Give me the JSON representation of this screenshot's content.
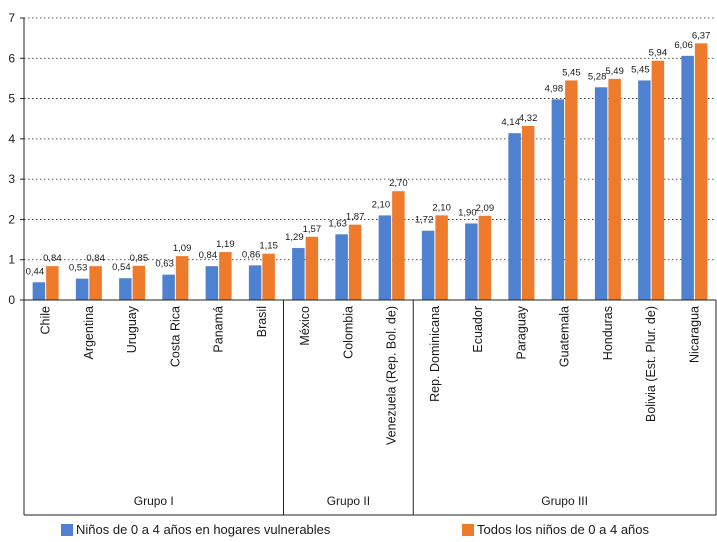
{
  "chart_data": {
    "type": "bar",
    "categories": [
      "Chile",
      "Argentina",
      "Uruguay",
      "Costa Rica",
      "Panamá",
      "Brasil",
      "México",
      "Colombia",
      "Venezuela (Rep. Bol. de)",
      "Rep. Dominicana",
      "Ecuador",
      "Paraguay",
      "Guatemala",
      "Honduras",
      "Bolivia (Est. Plur. de)",
      "Nicaragua"
    ],
    "series": [
      {
        "name": "Niños de 0 a 4 años en hogares vulnerables",
        "color": "#4f81d1",
        "values": [
          0.44,
          0.53,
          0.54,
          0.63,
          0.84,
          0.86,
          1.29,
          1.63,
          2.1,
          1.72,
          1.9,
          4.14,
          4.98,
          5.28,
          5.45,
          6.06
        ],
        "labels": [
          "0,44",
          "0,53",
          "0,54",
          "0,63",
          "0,84",
          "0,86",
          "1,29",
          "1,63",
          "2,10",
          "1,72",
          "1,90",
          "4,14",
          "4,98",
          "5,28",
          "5,45",
          "6,06"
        ]
      },
      {
        "name": "Todos los niños de 0 a 4 años",
        "color": "#ee7a2c",
        "values": [
          0.84,
          0.84,
          0.85,
          1.09,
          1.19,
          1.15,
          1.57,
          1.87,
          2.7,
          2.1,
          2.09,
          4.32,
          5.45,
          5.49,
          5.94,
          6.37
        ],
        "labels": [
          "0,84",
          "0,84",
          "0,85",
          "1,09",
          "1,19",
          "1,15",
          "1,57",
          "1,87",
          "2,70",
          "2,10",
          "2,09",
          "4,32",
          "5,45",
          "5,49",
          "5,94",
          "6,37"
        ]
      }
    ],
    "groups": [
      {
        "label": "Grupo I",
        "start": 0,
        "end": 5
      },
      {
        "label": "Grupo II",
        "start": 6,
        "end": 8
      },
      {
        "label": "Grupo III",
        "start": 9,
        "end": 15
      }
    ],
    "ylim": [
      0,
      7
    ],
    "yticks": [
      0,
      1,
      2,
      3,
      4,
      5,
      6,
      7
    ],
    "grid": true,
    "legend": "bottom"
  }
}
